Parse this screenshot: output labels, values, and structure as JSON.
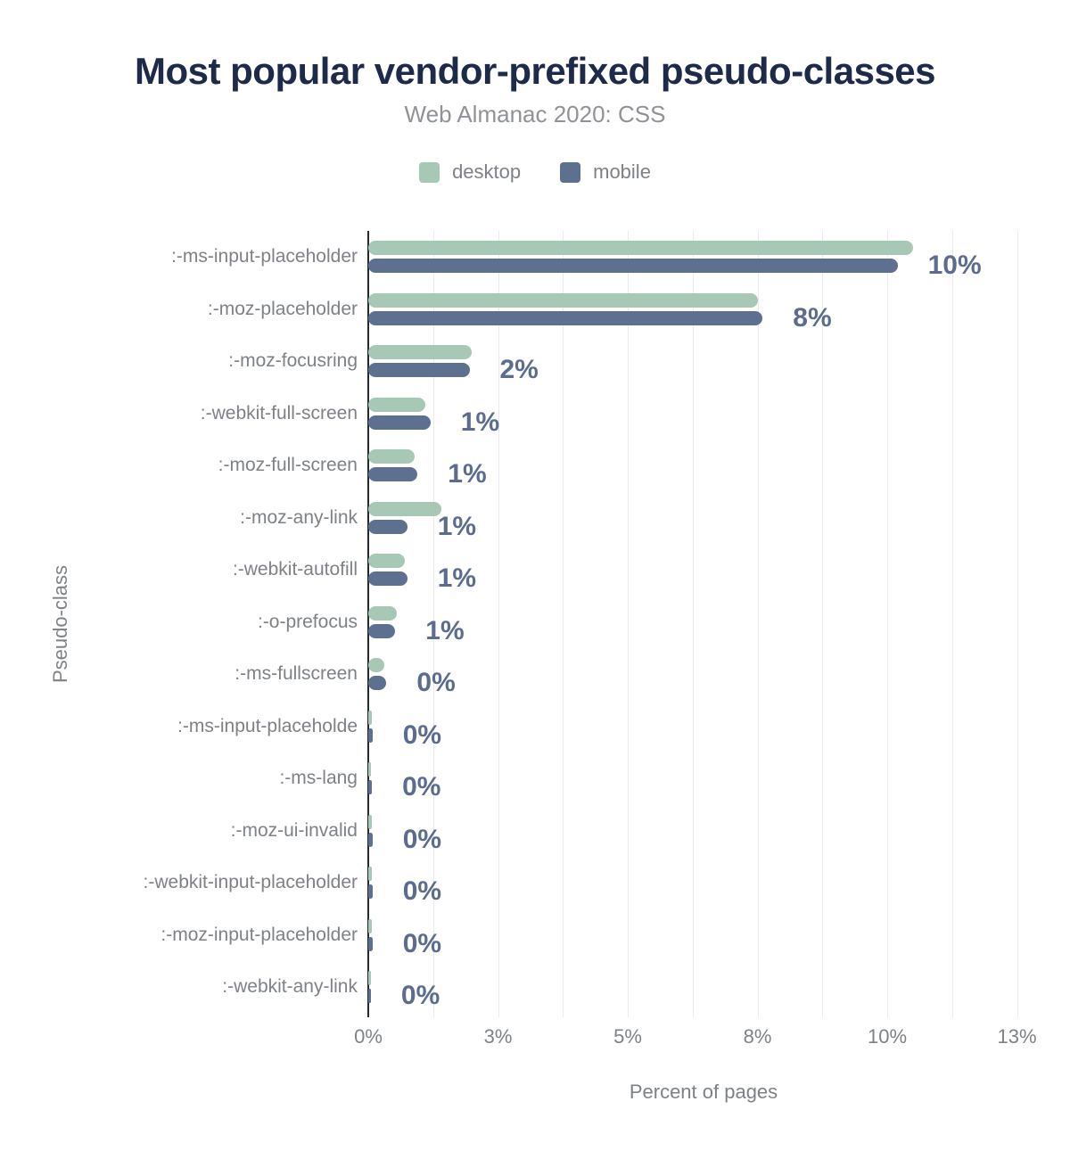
{
  "header": {
    "title": "Most popular vendor-prefixed pseudo-classes",
    "subtitle": "Web Almanac 2020: CSS"
  },
  "colors": {
    "title": "#1e2a4a",
    "subtitle": "#8f9296",
    "axis_text": "#7e8287",
    "annotation": "#5b6c8f",
    "gridline": "#e9ebed",
    "axis_line": "#24292f",
    "desktop": "#a7c8b4",
    "mobile": "#5e7090",
    "background": "#ffffff"
  },
  "chart_data": {
    "type": "bar",
    "orientation": "horizontal",
    "title": "Most popular vendor-prefixed pseudo-classes",
    "subtitle": "Web Almanac 2020: CSS",
    "xlabel": "Percent of pages",
    "ylabel": "Pseudo-class",
    "xlim": [
      0,
      12.92
    ],
    "grid": true,
    "minor_gridline_step_pct": 1.25,
    "legend_position": "top",
    "x_ticks": [
      {
        "value": 0,
        "label": "0%"
      },
      {
        "value": 2.5,
        "label": "3%"
      },
      {
        "value": 5,
        "label": "5%"
      },
      {
        "value": 7.5,
        "label": "8%"
      },
      {
        "value": 10,
        "label": "10%"
      },
      {
        "value": 12.5,
        "label": "13%"
      }
    ],
    "categories": [
      ":-ms-input-placeholder",
      ":-moz-placeholder",
      ":-moz-focusring",
      ":-webkit-full-screen",
      ":-moz-full-screen",
      ":-moz-any-link",
      ":-webkit-autofill",
      ":-o-prefocus",
      ":-ms-fullscreen",
      ":-ms-input-placeholde",
      ":-ms-lang",
      ":-moz-ui-invalid",
      ":-webkit-input-placeholder",
      ":-moz-input-placeholder",
      ":-webkit-any-link"
    ],
    "series": [
      {
        "name": "desktop",
        "color": "#a7c8b4",
        "values": [
          10.5,
          7.5,
          2.0,
          1.1,
          0.9,
          1.4,
          0.7,
          0.55,
          0.3,
          0.06,
          0.05,
          0.06,
          0.06,
          0.06,
          0.05
        ]
      },
      {
        "name": "mobile",
        "color": "#5e7090",
        "values": [
          10.2,
          7.6,
          1.95,
          1.2,
          0.95,
          0.75,
          0.75,
          0.52,
          0.35,
          0.08,
          0.07,
          0.08,
          0.08,
          0.08,
          0.05
        ]
      }
    ],
    "value_labels": [
      "10%",
      "8%",
      "2%",
      "1%",
      "1%",
      "1%",
      "1%",
      "1%",
      "0%",
      "0%",
      "0%",
      "0%",
      "0%",
      "0%",
      "0%"
    ]
  }
}
